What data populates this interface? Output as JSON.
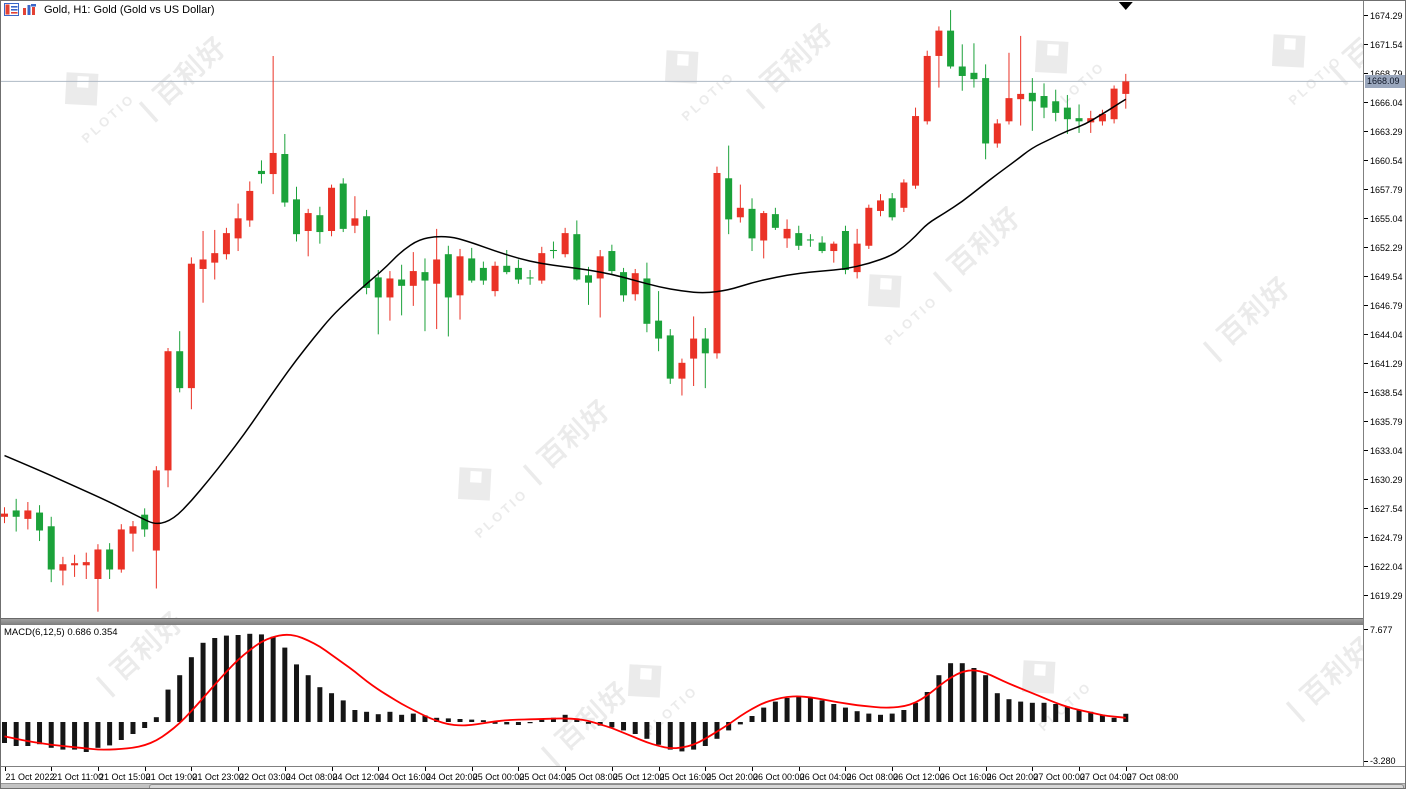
{
  "window": {
    "title": "Gold, H1:  Gold (Gold vs US Dollar)",
    "icons": [
      "quotes-grid-icon",
      "bar-chart-icon"
    ]
  },
  "price_axis": {
    "labels": [
      "1674.29",
      "1671.54",
      "1668.79",
      "1666.04",
      "1663.29",
      "1660.54",
      "1657.79",
      "1655.04",
      "1652.29",
      "1649.54",
      "1646.79",
      "1644.04",
      "1641.29",
      "1638.54",
      "1635.79",
      "1633.04",
      "1630.29",
      "1627.54",
      "1624.79",
      "1622.04",
      "1619.29"
    ],
    "current_price": "1668.09"
  },
  "time_axis": {
    "labels": [
      "21 Oct 2022",
      "21 Oct 11:00",
      "21 Oct 15:00",
      "21 Oct 19:00",
      "21 Oct 23:00",
      "22 Oct 03:00",
      "24 Oct 08:00",
      "24 Oct 12:00",
      "24 Oct 16:00",
      "24 Oct 20:00",
      "25 Oct 00:00",
      "25 Oct 04:00",
      "25 Oct 08:00",
      "25 Oct 12:00",
      "25 Oct 16:00",
      "25 Oct 20:00",
      "26 Oct 00:00",
      "26 Oct 04:00",
      "26 Oct 08:00",
      "26 Oct 12:00",
      "26 Oct 16:00",
      "26 Oct 20:00",
      "27 Oct 00:00",
      "27 Oct 04:00",
      "27 Oct 08:00"
    ],
    "label_every_bars": 4
  },
  "macd_panel": {
    "label": "MACD(6,12,5) 0.686 0.354",
    "axis_max": "7.677",
    "axis_min": "-3.280"
  },
  "watermark": {
    "cn": "| 百利好",
    "en": "PLOTIO"
  },
  "colors": {
    "bull": "#ea3226",
    "bear": "#1ba23a",
    "ma_line": "#000000",
    "macd_histogram": "#151515",
    "macd_signal": "#fe0000",
    "price_line": "#aeb9c4",
    "price_tag_bg": "#9aa7bd"
  },
  "chart_data": {
    "type": "candlestick",
    "symbol": "Gold (Gold vs US Dollar)",
    "timeframe": "H1",
    "bars": 97,
    "visible_price_range": [
      1617.2,
      1675.7
    ],
    "ohlc": [
      [
        1626.8,
        1627.7,
        1626.2,
        1627.1
      ],
      [
        1627.4,
        1628.5,
        1625.4,
        1626.8
      ],
      [
        1626.6,
        1628.2,
        1625.6,
        1627.4
      ],
      [
        1627.2,
        1627.9,
        1624.5,
        1625.5
      ],
      [
        1625.9,
        1626.8,
        1620.6,
        1621.8
      ],
      [
        1621.7,
        1623.0,
        1620.3,
        1622.3
      ],
      [
        1622.2,
        1623.2,
        1621.1,
        1622.4
      ],
      [
        1622.2,
        1623.4,
        1620.9,
        1622.5
      ],
      [
        1620.9,
        1624.2,
        1617.8,
        1623.7
      ],
      [
        1623.7,
        1624.3,
        1620.9,
        1621.8
      ],
      [
        1621.8,
        1626.1,
        1621.5,
        1625.6
      ],
      [
        1625.2,
        1626.4,
        1623.5,
        1625.9
      ],
      [
        1627.0,
        1627.6,
        1624.9,
        1625.6
      ],
      [
        1623.6,
        1631.6,
        1620.0,
        1631.2
      ],
      [
        1631.2,
        1642.8,
        1629.6,
        1642.5
      ],
      [
        1642.5,
        1644.4,
        1638.6,
        1639.0
      ],
      [
        1639.0,
        1651.4,
        1637.0,
        1650.8
      ],
      [
        1650.3,
        1653.9,
        1647.1,
        1651.2
      ],
      [
        1650.9,
        1654.0,
        1649.3,
        1651.8
      ],
      [
        1651.7,
        1654.2,
        1651.2,
        1653.7
      ],
      [
        1653.2,
        1656.5,
        1652.0,
        1655.1
      ],
      [
        1654.9,
        1658.6,
        1654.3,
        1657.7
      ],
      [
        1659.6,
        1660.6,
        1658.4,
        1659.3
      ],
      [
        1659.3,
        1670.5,
        1657.4,
        1661.3
      ],
      [
        1661.2,
        1663.1,
        1656.2,
        1656.6
      ],
      [
        1656.9,
        1658.1,
        1652.9,
        1653.6
      ],
      [
        1653.9,
        1656.0,
        1651.5,
        1655.6
      ],
      [
        1655.4,
        1656.2,
        1652.7,
        1653.8
      ],
      [
        1653.9,
        1658.3,
        1653.4,
        1658.0
      ],
      [
        1658.4,
        1658.9,
        1653.8,
        1654.1
      ],
      [
        1654.4,
        1657.2,
        1653.7,
        1655.1
      ],
      [
        1655.3,
        1655.9,
        1647.9,
        1648.5
      ],
      [
        1649.5,
        1650.2,
        1644.1,
        1647.6
      ],
      [
        1647.6,
        1650.1,
        1645.4,
        1649.4
      ],
      [
        1649.3,
        1650.7,
        1645.9,
        1648.7
      ],
      [
        1648.7,
        1651.9,
        1646.8,
        1650.1
      ],
      [
        1650.0,
        1651.3,
        1644.4,
        1649.2
      ],
      [
        1648.9,
        1654.1,
        1644.6,
        1651.2
      ],
      [
        1651.7,
        1652.5,
        1643.9,
        1647.6
      ],
      [
        1647.8,
        1652.2,
        1645.5,
        1651.5
      ],
      [
        1651.3,
        1652.3,
        1649.0,
        1649.2
      ],
      [
        1650.4,
        1651.0,
        1648.8,
        1649.2
      ],
      [
        1648.2,
        1651.0,
        1647.7,
        1650.6
      ],
      [
        1650.6,
        1652.1,
        1649.8,
        1650.0
      ],
      [
        1650.4,
        1651.2,
        1648.9,
        1649.3
      ],
      [
        1649.5,
        1650.2,
        1648.8,
        1649.4
      ],
      [
        1649.2,
        1652.4,
        1648.9,
        1651.8
      ],
      [
        1652.1,
        1652.9,
        1651.3,
        1652.0
      ],
      [
        1651.7,
        1654.2,
        1651.4,
        1653.7
      ],
      [
        1653.6,
        1654.9,
        1649.2,
        1649.3
      ],
      [
        1649.7,
        1650.5,
        1646.9,
        1649.0
      ],
      [
        1649.4,
        1652.1,
        1645.7,
        1651.5
      ],
      [
        1652.0,
        1652.6,
        1649.8,
        1650.1
      ],
      [
        1650.0,
        1650.4,
        1647.2,
        1647.8
      ],
      [
        1647.9,
        1650.3,
        1647.3,
        1649.9
      ],
      [
        1649.4,
        1650.9,
        1644.3,
        1645.1
      ],
      [
        1645.4,
        1648.2,
        1642.5,
        1643.7
      ],
      [
        1644.0,
        1644.6,
        1639.4,
        1639.9
      ],
      [
        1639.9,
        1641.8,
        1638.3,
        1641.4
      ],
      [
        1641.8,
        1645.8,
        1639.2,
        1643.7
      ],
      [
        1643.7,
        1644.7,
        1639.0,
        1642.3
      ],
      [
        1642.3,
        1660.0,
        1641.8,
        1659.4
      ],
      [
        1658.9,
        1662.0,
        1653.6,
        1655.0
      ],
      [
        1655.2,
        1658.3,
        1654.7,
        1656.1
      ],
      [
        1656.0,
        1657.0,
        1652.0,
        1653.2
      ],
      [
        1653.0,
        1655.8,
        1651.3,
        1655.6
      ],
      [
        1655.5,
        1656.1,
        1654.0,
        1654.2
      ],
      [
        1653.2,
        1655.0,
        1652.3,
        1654.1
      ],
      [
        1653.7,
        1654.4,
        1652.1,
        1652.5
      ],
      [
        1653.1,
        1653.6,
        1652.4,
        1653.0
      ],
      [
        1652.8,
        1653.4,
        1651.8,
        1652.0
      ],
      [
        1652.0,
        1652.9,
        1650.9,
        1652.7
      ],
      [
        1653.9,
        1654.4,
        1649.8,
        1650.2
      ],
      [
        1650.0,
        1654.1,
        1649.4,
        1652.7
      ],
      [
        1652.5,
        1656.4,
        1652.2,
        1656.1
      ],
      [
        1655.8,
        1657.4,
        1655.3,
        1656.8
      ],
      [
        1657.0,
        1657.5,
        1654.9,
        1655.2
      ],
      [
        1656.1,
        1658.8,
        1655.7,
        1658.5
      ],
      [
        1658.2,
        1665.6,
        1657.9,
        1664.8
      ],
      [
        1664.3,
        1671.0,
        1664.0,
        1670.5
      ],
      [
        1670.5,
        1673.3,
        1667.5,
        1672.9
      ],
      [
        1672.9,
        1674.85,
        1669.3,
        1669.5
      ],
      [
        1669.5,
        1671.6,
        1667.2,
        1668.6
      ],
      [
        1668.9,
        1671.7,
        1667.5,
        1668.3
      ],
      [
        1668.4,
        1669.7,
        1660.7,
        1662.2
      ],
      [
        1662.2,
        1664.5,
        1661.8,
        1664.1
      ],
      [
        1664.3,
        1670.8,
        1664.0,
        1666.5
      ],
      [
        1666.4,
        1672.4,
        1663.9,
        1666.9
      ],
      [
        1667.0,
        1668.4,
        1663.4,
        1666.2
      ],
      [
        1666.7,
        1667.9,
        1664.6,
        1665.6
      ],
      [
        1666.2,
        1667.3,
        1664.3,
        1665.1
      ],
      [
        1665.6,
        1666.8,
        1663.1,
        1664.5
      ],
      [
        1664.6,
        1665.9,
        1663.2,
        1664.3
      ],
      [
        1664.2,
        1665.3,
        1663.2,
        1664.6
      ],
      [
        1664.3,
        1665.4,
        1663.9,
        1665.0
      ],
      [
        1664.5,
        1667.7,
        1664.1,
        1667.4
      ],
      [
        1666.9,
        1668.8,
        1665.5,
        1668.09
      ]
    ],
    "ma_line": [
      [
        0,
        1632.6
      ],
      [
        3,
        1631.2
      ],
      [
        6,
        1629.7
      ],
      [
        9,
        1628.2
      ],
      [
        11.5,
        1626.8
      ],
      [
        13,
        1626.0
      ],
      [
        14.5,
        1626.6
      ],
      [
        16,
        1628.3
      ],
      [
        17.5,
        1630.3
      ],
      [
        19,
        1632.4
      ],
      [
        20.5,
        1634.6
      ],
      [
        22,
        1637.0
      ],
      [
        23.5,
        1639.4
      ],
      [
        25,
        1641.7
      ],
      [
        26.5,
        1643.8
      ],
      [
        28,
        1645.8
      ],
      [
        29.5,
        1647.4
      ],
      [
        31,
        1648.9
      ],
      [
        32.5,
        1650.3
      ],
      [
        34,
        1652.0
      ],
      [
        35.5,
        1653.1
      ],
      [
        37,
        1653.4
      ],
      [
        38.5,
        1653.3
      ],
      [
        40,
        1652.8
      ],
      [
        42,
        1652.0
      ],
      [
        44,
        1651.3
      ],
      [
        46,
        1650.8
      ],
      [
        48,
        1650.5
      ],
      [
        50,
        1650.2
      ],
      [
        52,
        1649.8
      ],
      [
        54,
        1649.2
      ],
      [
        56,
        1648.6
      ],
      [
        58,
        1648.2
      ],
      [
        60,
        1648.0
      ],
      [
        62,
        1648.3
      ],
      [
        64,
        1649.0
      ],
      [
        66,
        1649.5
      ],
      [
        68,
        1649.9
      ],
      [
        70,
        1650.1
      ],
      [
        72,
        1650.3
      ],
      [
        74,
        1650.8
      ],
      [
        76,
        1651.6
      ],
      [
        77,
        1652.4
      ],
      [
        78,
        1653.4
      ],
      [
        79,
        1654.6
      ],
      [
        80.5,
        1655.6
      ],
      [
        82,
        1656.7
      ],
      [
        83.5,
        1658.0
      ],
      [
        85,
        1659.3
      ],
      [
        86.5,
        1660.5
      ],
      [
        88,
        1661.8
      ],
      [
        89.5,
        1662.6
      ],
      [
        91,
        1663.4
      ],
      [
        92.5,
        1664.0
      ],
      [
        94,
        1665.0
      ],
      [
        95,
        1665.7
      ],
      [
        96,
        1666.4
      ]
    ],
    "macd": {
      "params": [
        6,
        12,
        5
      ],
      "current_macd": 0.686,
      "current_signal": 0.354,
      "axis_range": [
        -3.28,
        7.677
      ],
      "histogram": [
        -1.75,
        -2.0,
        -2.0,
        -1.85,
        -2.15,
        -2.3,
        -2.3,
        -2.5,
        -2.15,
        -1.95,
        -1.5,
        -1.0,
        -0.5,
        0.4,
        2.7,
        3.9,
        5.4,
        6.6,
        7.0,
        7.2,
        7.25,
        7.35,
        7.3,
        7.1,
        6.2,
        4.8,
        3.9,
        2.9,
        2.4,
        1.8,
        1.0,
        0.85,
        0.65,
        0.85,
        0.6,
        0.7,
        0.55,
        0.35,
        0.3,
        0.25,
        0.2,
        0.15,
        -0.15,
        -0.2,
        -0.25,
        -0.1,
        0.2,
        0.35,
        0.6,
        0.3,
        -0.15,
        -0.3,
        -0.45,
        -0.7,
        -1.0,
        -1.4,
        -1.9,
        -2.3,
        -2.45,
        -2.3,
        -2.0,
        -1.4,
        -0.7,
        -0.2,
        0.5,
        1.2,
        1.7,
        2.0,
        2.1,
        2.0,
        1.8,
        1.5,
        1.2,
        0.9,
        0.7,
        0.6,
        0.7,
        1.0,
        1.6,
        2.5,
        3.9,
        4.9,
        4.9,
        4.5,
        3.9,
        2.4,
        1.9,
        1.7,
        1.6,
        1.6,
        1.5,
        1.3,
        1.0,
        0.85,
        0.6,
        0.35,
        0.686
      ],
      "signal": [
        -1.2,
        -1.4,
        -1.6,
        -1.75,
        -1.9,
        -2.0,
        -2.1,
        -2.2,
        -2.3,
        -2.3,
        -2.25,
        -2.15,
        -1.95,
        -1.55,
        -0.9,
        -0.1,
        0.9,
        2.0,
        3.1,
        4.2,
        5.2,
        6.0,
        6.7,
        7.1,
        7.3,
        7.2,
        6.8,
        6.3,
        5.6,
        4.9,
        4.2,
        3.4,
        2.7,
        2.1,
        1.5,
        1.0,
        0.5,
        0.1,
        -0.2,
        -0.3,
        -0.25,
        -0.1,
        0.05,
        0.15,
        0.2,
        0.22,
        0.25,
        0.28,
        0.3,
        0.25,
        0.1,
        -0.2,
        -0.5,
        -0.9,
        -1.3,
        -1.7,
        -2.0,
        -2.2,
        -2.15,
        -1.9,
        -1.4,
        -0.8,
        -0.2,
        0.5,
        1.1,
        1.6,
        1.9,
        2.1,
        2.15,
        2.05,
        1.9,
        1.7,
        1.55,
        1.4,
        1.3,
        1.2,
        1.2,
        1.3,
        1.6,
        2.2,
        3.0,
        3.7,
        4.2,
        4.35,
        4.1,
        3.65,
        3.2,
        2.8,
        2.4,
        2.0,
        1.6,
        1.25,
        1.0,
        0.8,
        0.55,
        0.45,
        0.354
      ]
    }
  }
}
